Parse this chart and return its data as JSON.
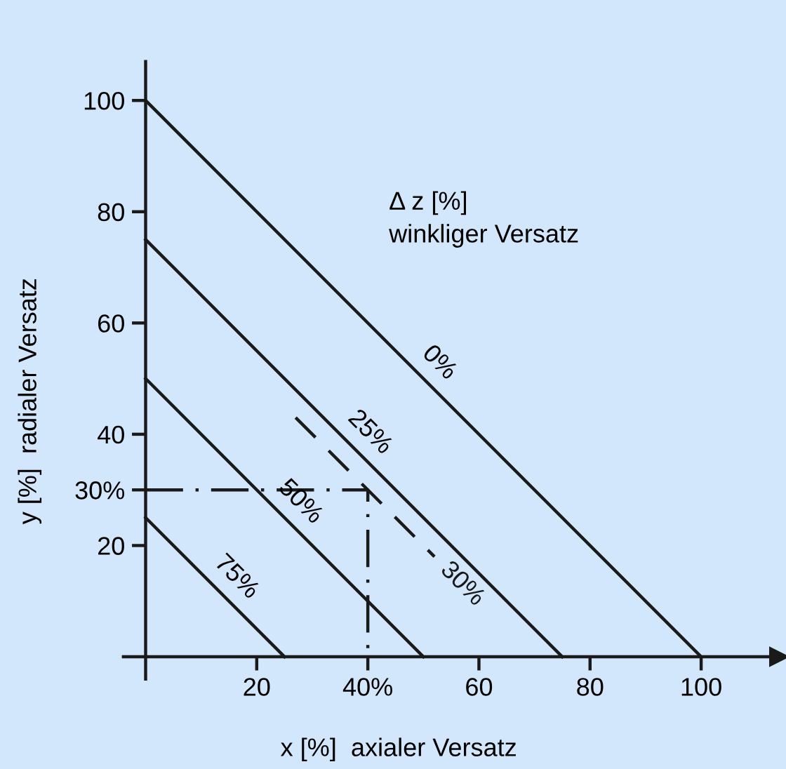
{
  "chart_data": {
    "type": "line",
    "xlabel": "x [%]  axialer Versatz",
    "ylabel": "y [%]  radialer Versatz",
    "series": [
      {
        "color": "#1a1a1a",
        "x": [
          0,
          100
        ],
        "values": [
          100,
          0
        ]
      },
      {
        "color": "#1a1a1a",
        "x": [
          0,
          75
        ],
        "values": [
          75,
          0
        ]
      },
      {
        "color": "#1a1a1a",
        "x": [
          0,
          50
        ],
        "values": [
          50,
          0
        ]
      },
      {
        "color": "#1a1a1a",
        "x": [
          0,
          25
        ],
        "values": [
          25,
          0
        ]
      },
      {
        "name": "30%",
        "color": "#1a1a1a",
        "x": [
          27,
          52
        ],
        "values": [
          43,
          18
        ],
        "line_style": "dashed"
      },
      {
        "color": "#1a1a1a",
        "x": [
          0,
          40,
          40
        ],
        "values": [
          30,
          30,
          0
        ],
        "line_style": "dashdot"
      }
    ],
    "annotations": [
      {
        "text": "0%",
        "x": 50,
        "y": 50
      },
      {
        "text": "25%",
        "x": 37.5,
        "y": 37.5
      },
      {
        "text": "50%",
        "x": 25,
        "y": 25
      },
      {
        "text": "75%",
        "x": 13.5,
        "y": 11.5
      },
      "Δ z [%]\nwinkliger Versatz"
    ],
    "xlim": [
      -4,
      114
    ],
    "ylim": [
      -4,
      107
    ],
    "xticks": [
      20,
      {
        "value": 40,
        "label": "40%"
      },
      60,
      80,
      100
    ],
    "yticks": [
      20,
      {
        "value": 30,
        "label": "30%"
      },
      40,
      60,
      80,
      100
    ],
    "grid": false,
    "legend": false
  }
}
